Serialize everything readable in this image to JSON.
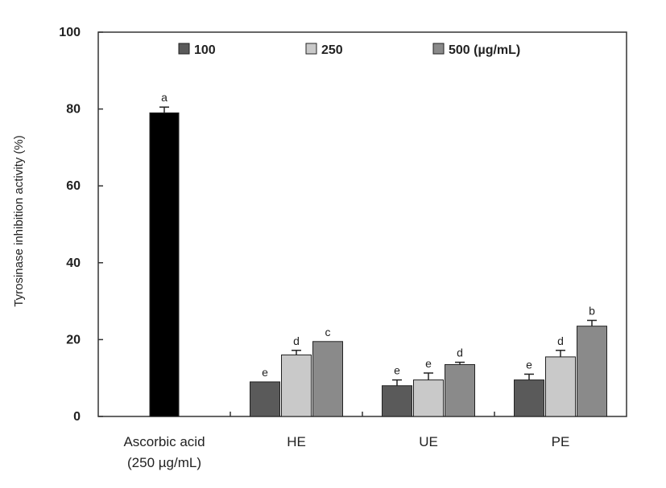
{
  "chart_data": {
    "type": "bar",
    "ylabel": "Tyrosinase inhibition activity (%)",
    "ylim": [
      0,
      100
    ],
    "yticks": [
      "0",
      "20",
      "40",
      "60",
      "80",
      "100"
    ],
    "grid": false,
    "legend_position": "top",
    "legend": [
      {
        "name": "100",
        "color": "#5a5a5a"
      },
      {
        "name": "250",
        "color": "#c9c9c9"
      },
      {
        "name": "500 (µg/mL)",
        "color": "#8a8a8a"
      }
    ],
    "categories": [
      {
        "label": "Ascorbic acid",
        "sublabel": "(250 µg/mL)"
      },
      {
        "label": "HE",
        "sublabel": ""
      },
      {
        "label": "UE",
        "sublabel": ""
      },
      {
        "label": "PE",
        "sublabel": ""
      }
    ],
    "reference": {
      "value": 79,
      "error": 1.5,
      "letter": "a",
      "color": "#000000"
    },
    "series": [
      {
        "name": "100",
        "values": [
          null,
          9,
          8,
          9.5
        ],
        "errors": [
          null,
          0,
          1.5,
          1.5
        ],
        "letters": [
          "",
          "e",
          "e",
          "e"
        ],
        "color": "#5a5a5a"
      },
      {
        "name": "250",
        "values": [
          null,
          16,
          9.5,
          15.5
        ],
        "errors": [
          null,
          1.2,
          1.8,
          1.7
        ],
        "letters": [
          "",
          "d",
          "e",
          "d"
        ],
        "color": "#c9c9c9"
      },
      {
        "name": "500",
        "values": [
          null,
          19.5,
          13.5,
          23.5
        ],
        "errors": [
          null,
          0,
          0.6,
          1.5
        ],
        "letters": [
          "",
          "c",
          "d",
          "b"
        ],
        "color": "#8a8a8a"
      }
    ]
  }
}
